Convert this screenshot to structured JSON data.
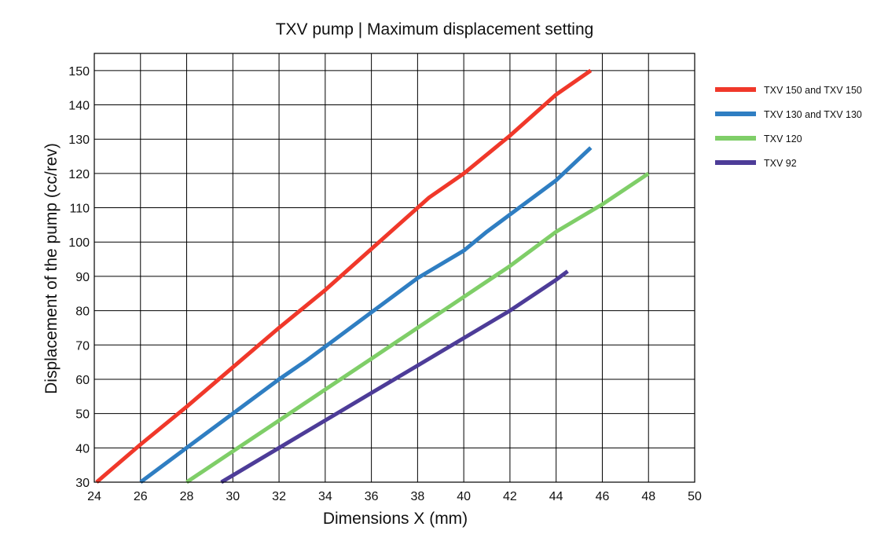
{
  "chart_data": {
    "type": "line",
    "title": "TXV pump | Maximum displacement setting",
    "xlabel": "Dimensions X (mm)",
    "ylabel": "Displacement of the pump (cc/rev)",
    "xlim": [
      24,
      50
    ],
    "ylim": [
      30,
      155
    ],
    "xticks": [
      24,
      26,
      28,
      30,
      32,
      34,
      36,
      38,
      40,
      42,
      44,
      46,
      48,
      50
    ],
    "yticks": [
      30,
      40,
      50,
      60,
      70,
      80,
      90,
      100,
      110,
      120,
      130,
      140,
      150
    ],
    "grid": true,
    "legend_position": "right",
    "series": [
      {
        "name": "TXV 150 and  TXV 150",
        "color": "#f0382a",
        "x": [
          24.1,
          26,
          28,
          30,
          32,
          34,
          36,
          38,
          38.5,
          40,
          42,
          44,
          45.5
        ],
        "y": [
          30,
          41,
          52,
          63.5,
          75,
          86,
          98,
          110,
          113,
          120,
          131,
          143,
          150
        ]
      },
      {
        "name": "TXV 130 and TXV 130",
        "color": "#2f7ec2",
        "x": [
          26,
          28,
          30,
          32,
          33.2,
          34,
          36,
          38,
          38.5,
          40,
          41,
          42,
          44,
          45.5
        ],
        "y": [
          30,
          40,
          50,
          60,
          65.5,
          69.5,
          79.5,
          89.5,
          91.5,
          97.5,
          103,
          108,
          118,
          127.5
        ]
      },
      {
        "name": "TXV 120",
        "color": "#7fce68",
        "x": [
          28,
          30,
          32,
          34,
          36,
          38,
          40,
          42,
          44,
          46,
          48
        ],
        "y": [
          30,
          39,
          48,
          57,
          66,
          75,
          84,
          93,
          103,
          111,
          120
        ]
      },
      {
        "name": "TXV 92",
        "color": "#4d3c98",
        "x": [
          29.5,
          30,
          32,
          34,
          36,
          38,
          40,
          42,
          44,
          44.5
        ],
        "y": [
          30,
          32,
          40,
          48,
          56,
          64,
          72,
          80,
          89,
          91.5
        ]
      }
    ]
  }
}
